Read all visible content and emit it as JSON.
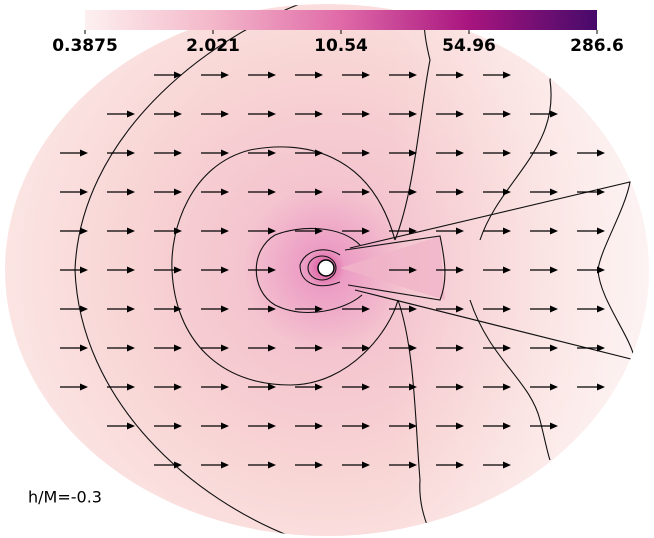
{
  "chart_data": {
    "type": "field",
    "colorbar": {
      "lim": [
        0.3875,
        286.6
      ],
      "ticks": [
        0.3875,
        2.021,
        10.54,
        54.96,
        286.6
      ],
      "log": true,
      "colors": [
        "#fdf0f0",
        "#f3b7c9",
        "#e06aa8",
        "#a8157f",
        "#470a6a"
      ]
    },
    "annotation": "h/M=-0.3"
  }
}
